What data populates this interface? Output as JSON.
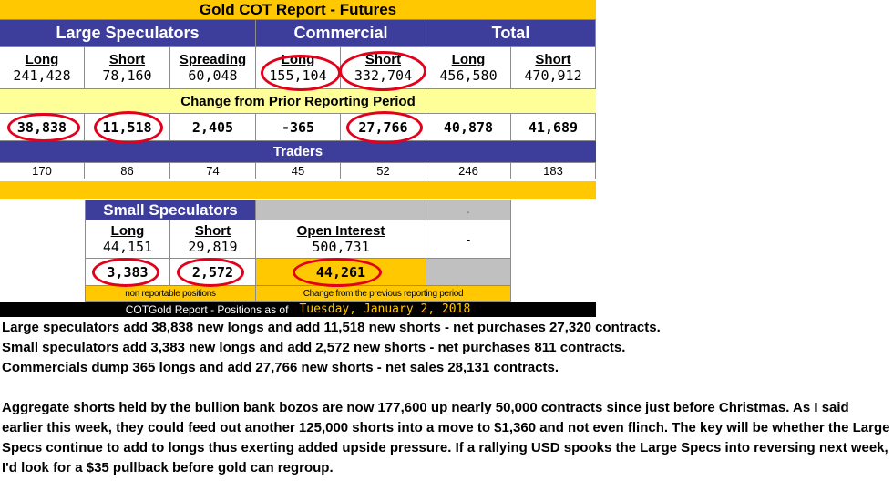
{
  "report": {
    "title": "Gold COT Report - Futures",
    "groups": {
      "large_speculators": "Large Speculators",
      "commercial": "Commercial",
      "total": "Total"
    },
    "columns": {
      "long": "Long",
      "short": "Short",
      "spreading": "Spreading"
    },
    "positions": {
      "large_long": "241,428",
      "large_short": "78,160",
      "large_spreading": "60,048",
      "comm_long": "155,104",
      "comm_short": "332,704",
      "total_long": "456,580",
      "total_short": "470,912"
    },
    "change_label": "Change from Prior Reporting Period",
    "changes": {
      "large_long": "38,838",
      "large_short": "11,518",
      "large_spreading": "2,405",
      "comm_long": "-365",
      "comm_short": "27,766",
      "total_long": "40,878",
      "total_short": "41,689"
    },
    "traders_label": "Traders",
    "traders": [
      "170",
      "86",
      "74",
      "45",
      "52",
      "246",
      "183"
    ],
    "small": {
      "title": "Small Speculators",
      "long_label": "Long",
      "short_label": "Short",
      "long": "44,151",
      "short": "29,819",
      "oi_label": "Open Interest",
      "oi": "500,731",
      "dash_top": "-",
      "dash": "-",
      "change_long": "3,383",
      "change_short": "2,572",
      "change_oi": "44,261",
      "note_left": "non reportable positions",
      "note_right": "Change from the previous reporting period"
    },
    "footer": {
      "prefix": "COTGold Report - Positions as of",
      "date": "Tuesday, January 2, 2018"
    }
  },
  "commentary": {
    "line1": "Large speculators add 38,838 new longs and add 11,518 new shorts - net purchases 27,320 contracts.",
    "line2": "Small speculators add 3,383 new longs and add 2,572 new shorts - net purchases 811 contracts.",
    "line3": "Commercials dump 365 longs and add 27,766 new shorts - net sales 28,131 contracts.",
    "paragraph": "Aggregate shorts held by the bullion bank bozos are now 177,600 up nearly 50,000 contracts since just before Christmas. As I said earlier this week, they could feed out another 125,000 shorts into a move to $1,360 and not even flinch. The key will be whether the Large Specs continue to add to longs thus exerting added upside pressure. If a rallying USD spooks the Large Specs into reversing next week, I'd look for a $35 pullback before gold can regroup."
  },
  "colors": {
    "gold": "#ffc800",
    "blue": "#3d3d9c",
    "pale_yellow": "#ffff99",
    "circle_red": "#e2001a",
    "footer_date": "#ffc800"
  }
}
